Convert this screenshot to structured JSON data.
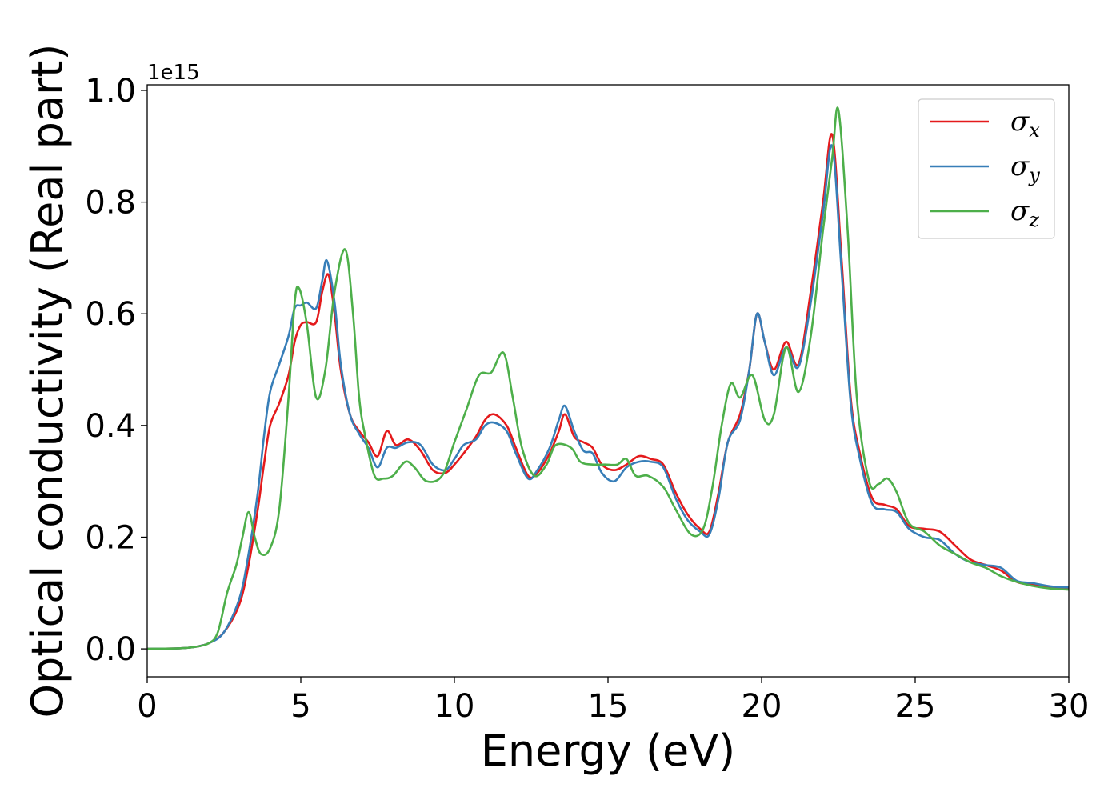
{
  "chart_data": {
    "type": "line",
    "xlabel": "Energy (eV)",
    "ylabel": "Optical conductivity (Real part)",
    "y_offset_label": "1e15",
    "xlim": [
      0,
      30
    ],
    "ylim": [
      -0.05,
      1.01
    ],
    "x_ticks": [
      0,
      5,
      10,
      15,
      20,
      25,
      30
    ],
    "x_tick_labels": [
      "0",
      "5",
      "10",
      "15",
      "20",
      "25",
      "30"
    ],
    "y_ticks": [
      0.0,
      0.2,
      0.4,
      0.6,
      0.8,
      1.0
    ],
    "y_tick_labels": [
      "0.0",
      "0.2",
      "0.4",
      "0.6",
      "0.8",
      "1.0"
    ],
    "grid": false,
    "legend_position": "top-right",
    "series": [
      {
        "name": "σx",
        "symbol": "σ",
        "subscript": "x",
        "color": "#e41a1c",
        "points": [
          [
            0,
            0
          ],
          [
            1,
            0.001
          ],
          [
            1.5,
            0.003
          ],
          [
            2,
            0.01
          ],
          [
            2.5,
            0.03
          ],
          [
            3,
            0.08
          ],
          [
            3.3,
            0.15
          ],
          [
            3.6,
            0.25
          ],
          [
            3.8,
            0.33
          ],
          [
            4,
            0.4
          ],
          [
            4.3,
            0.44
          ],
          [
            4.6,
            0.49
          ],
          [
            4.8,
            0.55
          ],
          [
            5,
            0.58
          ],
          [
            5.2,
            0.585
          ],
          [
            5.5,
            0.585
          ],
          [
            5.7,
            0.64
          ],
          [
            5.9,
            0.67
          ],
          [
            6.1,
            0.6
          ],
          [
            6.3,
            0.5
          ],
          [
            6.6,
            0.42
          ],
          [
            6.9,
            0.39
          ],
          [
            7.2,
            0.37
          ],
          [
            7.5,
            0.345
          ],
          [
            7.8,
            0.39
          ],
          [
            8.1,
            0.365
          ],
          [
            8.5,
            0.375
          ],
          [
            8.9,
            0.355
          ],
          [
            9.3,
            0.32
          ],
          [
            9.7,
            0.315
          ],
          [
            10,
            0.33
          ],
          [
            10.3,
            0.35
          ],
          [
            10.7,
            0.38
          ],
          [
            11.0,
            0.41
          ],
          [
            11.3,
            0.42
          ],
          [
            11.7,
            0.4
          ],
          [
            12.0,
            0.36
          ],
          [
            12.4,
            0.31
          ],
          [
            12.7,
            0.315
          ],
          [
            13.1,
            0.35
          ],
          [
            13.4,
            0.39
          ],
          [
            13.6,
            0.42
          ],
          [
            13.9,
            0.38
          ],
          [
            14.2,
            0.37
          ],
          [
            14.5,
            0.36
          ],
          [
            14.8,
            0.33
          ],
          [
            15.2,
            0.32
          ],
          [
            15.6,
            0.33
          ],
          [
            16,
            0.345
          ],
          [
            16.4,
            0.34
          ],
          [
            16.8,
            0.33
          ],
          [
            17.2,
            0.28
          ],
          [
            17.6,
            0.24
          ],
          [
            18.0,
            0.215
          ],
          [
            18.3,
            0.21
          ],
          [
            18.6,
            0.28
          ],
          [
            18.9,
            0.37
          ],
          [
            19.3,
            0.42
          ],
          [
            19.6,
            0.5
          ],
          [
            19.85,
            0.6
          ],
          [
            20.1,
            0.55
          ],
          [
            20.4,
            0.5
          ],
          [
            20.8,
            0.55
          ],
          [
            21.2,
            0.51
          ],
          [
            21.6,
            0.64
          ],
          [
            22.0,
            0.8
          ],
          [
            22.3,
            0.92
          ],
          [
            22.6,
            0.7
          ],
          [
            22.9,
            0.45
          ],
          [
            23.2,
            0.35
          ],
          [
            23.6,
            0.27
          ],
          [
            24.0,
            0.258
          ],
          [
            24.4,
            0.25
          ],
          [
            24.8,
            0.22
          ],
          [
            25.3,
            0.215
          ],
          [
            25.8,
            0.21
          ],
          [
            26.3,
            0.185
          ],
          [
            26.8,
            0.16
          ],
          [
            27.3,
            0.15
          ],
          [
            27.8,
            0.14
          ],
          [
            28.3,
            0.12
          ],
          [
            28.8,
            0.115
          ],
          [
            29.4,
            0.11
          ],
          [
            30,
            0.108
          ]
        ]
      },
      {
        "name": "σy",
        "symbol": "σ",
        "subscript": "y",
        "color": "#377eb8",
        "points": [
          [
            0,
            0
          ],
          [
            1,
            0.001
          ],
          [
            1.5,
            0.003
          ],
          [
            2,
            0.01
          ],
          [
            2.5,
            0.03
          ],
          [
            3,
            0.09
          ],
          [
            3.3,
            0.17
          ],
          [
            3.6,
            0.28
          ],
          [
            3.8,
            0.38
          ],
          [
            4,
            0.46
          ],
          [
            4.3,
            0.51
          ],
          [
            4.6,
            0.56
          ],
          [
            4.8,
            0.61
          ],
          [
            5,
            0.615
          ],
          [
            5.2,
            0.62
          ],
          [
            5.5,
            0.61
          ],
          [
            5.7,
            0.66
          ],
          [
            5.85,
            0.695
          ],
          [
            6.1,
            0.62
          ],
          [
            6.3,
            0.51
          ],
          [
            6.6,
            0.42
          ],
          [
            6.9,
            0.385
          ],
          [
            7.2,
            0.36
          ],
          [
            7.5,
            0.325
          ],
          [
            7.8,
            0.36
          ],
          [
            8.1,
            0.36
          ],
          [
            8.5,
            0.37
          ],
          [
            8.9,
            0.365
          ],
          [
            9.3,
            0.33
          ],
          [
            9.7,
            0.32
          ],
          [
            10,
            0.34
          ],
          [
            10.3,
            0.365
          ],
          [
            10.7,
            0.375
          ],
          [
            11.0,
            0.4
          ],
          [
            11.3,
            0.405
          ],
          [
            11.7,
            0.39
          ],
          [
            12.0,
            0.35
          ],
          [
            12.4,
            0.305
          ],
          [
            12.7,
            0.32
          ],
          [
            13.1,
            0.36
          ],
          [
            13.4,
            0.41
          ],
          [
            13.6,
            0.435
          ],
          [
            13.9,
            0.39
          ],
          [
            14.2,
            0.355
          ],
          [
            14.5,
            0.35
          ],
          [
            14.8,
            0.315
          ],
          [
            15.2,
            0.3
          ],
          [
            15.6,
            0.325
          ],
          [
            16,
            0.335
          ],
          [
            16.4,
            0.335
          ],
          [
            16.8,
            0.325
          ],
          [
            17.2,
            0.27
          ],
          [
            17.6,
            0.23
          ],
          [
            18.0,
            0.21
          ],
          [
            18.3,
            0.205
          ],
          [
            18.6,
            0.27
          ],
          [
            18.9,
            0.37
          ],
          [
            19.3,
            0.41
          ],
          [
            19.6,
            0.5
          ],
          [
            19.85,
            0.6
          ],
          [
            20.1,
            0.55
          ],
          [
            20.4,
            0.49
          ],
          [
            20.8,
            0.54
          ],
          [
            21.2,
            0.505
          ],
          [
            21.6,
            0.62
          ],
          [
            22.0,
            0.78
          ],
          [
            22.3,
            0.9
          ],
          [
            22.6,
            0.68
          ],
          [
            22.9,
            0.44
          ],
          [
            23.2,
            0.34
          ],
          [
            23.6,
            0.26
          ],
          [
            24.0,
            0.25
          ],
          [
            24.4,
            0.245
          ],
          [
            24.8,
            0.215
          ],
          [
            25.3,
            0.2
          ],
          [
            25.8,
            0.195
          ],
          [
            26.3,
            0.17
          ],
          [
            26.8,
            0.155
          ],
          [
            27.3,
            0.15
          ],
          [
            27.8,
            0.145
          ],
          [
            28.3,
            0.122
          ],
          [
            28.8,
            0.118
          ],
          [
            29.4,
            0.112
          ],
          [
            30,
            0.11
          ]
        ]
      },
      {
        "name": "σz",
        "symbol": "σ",
        "subscript": "z",
        "color": "#4daf4a",
        "points": [
          [
            0,
            0
          ],
          [
            1,
            0.001
          ],
          [
            1.5,
            0.003
          ],
          [
            2,
            0.01
          ],
          [
            2.3,
            0.03
          ],
          [
            2.6,
            0.1
          ],
          [
            2.9,
            0.15
          ],
          [
            3.1,
            0.2
          ],
          [
            3.3,
            0.245
          ],
          [
            3.5,
            0.2
          ],
          [
            3.7,
            0.17
          ],
          [
            4.0,
            0.18
          ],
          [
            4.3,
            0.25
          ],
          [
            4.6,
            0.45
          ],
          [
            4.8,
            0.62
          ],
          [
            4.95,
            0.645
          ],
          [
            5.2,
            0.58
          ],
          [
            5.5,
            0.45
          ],
          [
            5.8,
            0.5
          ],
          [
            6.1,
            0.64
          ],
          [
            6.45,
            0.715
          ],
          [
            6.7,
            0.6
          ],
          [
            6.9,
            0.45
          ],
          [
            7.1,
            0.38
          ],
          [
            7.4,
            0.31
          ],
          [
            7.7,
            0.305
          ],
          [
            8.0,
            0.31
          ],
          [
            8.4,
            0.335
          ],
          [
            8.7,
            0.325
          ],
          [
            9.1,
            0.3
          ],
          [
            9.6,
            0.31
          ],
          [
            10,
            0.37
          ],
          [
            10.4,
            0.43
          ],
          [
            10.8,
            0.49
          ],
          [
            11.2,
            0.495
          ],
          [
            11.6,
            0.53
          ],
          [
            11.9,
            0.45
          ],
          [
            12.2,
            0.36
          ],
          [
            12.6,
            0.31
          ],
          [
            13.0,
            0.33
          ],
          [
            13.3,
            0.365
          ],
          [
            13.8,
            0.36
          ],
          [
            14.1,
            0.335
          ],
          [
            14.5,
            0.33
          ],
          [
            14.9,
            0.33
          ],
          [
            15.3,
            0.33
          ],
          [
            15.6,
            0.34
          ],
          [
            15.9,
            0.31
          ],
          [
            16.3,
            0.31
          ],
          [
            16.8,
            0.29
          ],
          [
            17.2,
            0.25
          ],
          [
            17.7,
            0.205
          ],
          [
            18.1,
            0.215
          ],
          [
            18.4,
            0.29
          ],
          [
            18.7,
            0.4
          ],
          [
            19.0,
            0.475
          ],
          [
            19.3,
            0.45
          ],
          [
            19.7,
            0.49
          ],
          [
            20.1,
            0.41
          ],
          [
            20.4,
            0.42
          ],
          [
            20.8,
            0.54
          ],
          [
            21.2,
            0.46
          ],
          [
            21.6,
            0.56
          ],
          [
            22.0,
            0.75
          ],
          [
            22.3,
            0.88
          ],
          [
            22.5,
            0.965
          ],
          [
            22.8,
            0.75
          ],
          [
            23.1,
            0.45
          ],
          [
            23.5,
            0.3
          ],
          [
            23.8,
            0.295
          ],
          [
            24.1,
            0.305
          ],
          [
            24.4,
            0.28
          ],
          [
            24.8,
            0.225
          ],
          [
            25.3,
            0.21
          ],
          [
            25.8,
            0.185
          ],
          [
            26.3,
            0.17
          ],
          [
            26.8,
            0.155
          ],
          [
            27.3,
            0.145
          ],
          [
            27.8,
            0.13
          ],
          [
            28.3,
            0.12
          ],
          [
            28.8,
            0.113
          ],
          [
            29.4,
            0.108
          ],
          [
            30,
            0.106
          ]
        ]
      }
    ]
  }
}
